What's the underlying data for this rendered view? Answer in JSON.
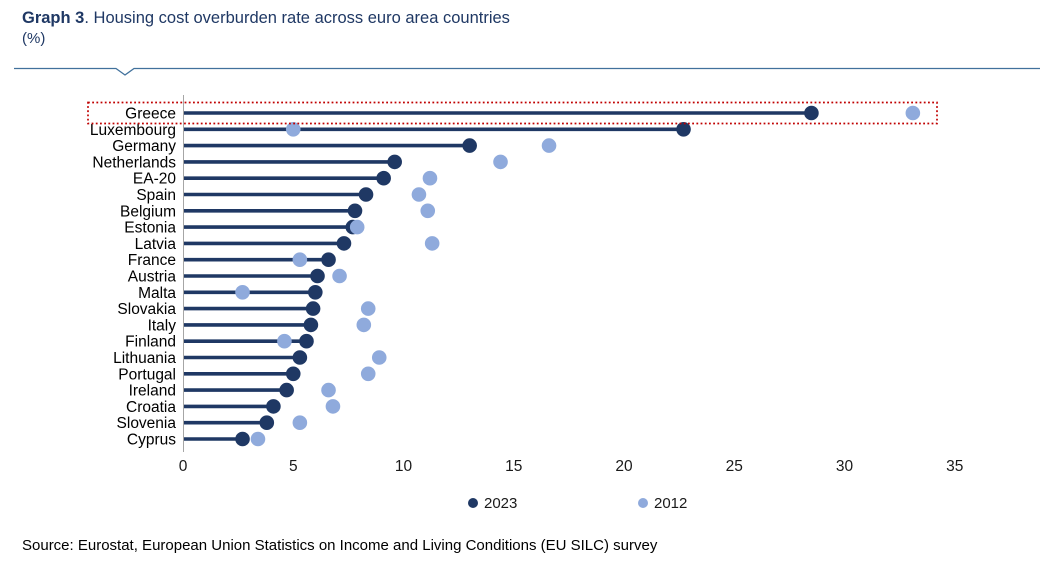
{
  "header": {
    "title_prefix": "Graph 3",
    "title_rest": ". Housing cost overburden rate across euro area countries",
    "subtitle": "(%)"
  },
  "chart_data": {
    "type": "lollipop-dot",
    "orientation": "horizontal",
    "title": "Housing cost overburden rate across euro area countries",
    "unit": "%",
    "xlim": [
      0,
      35
    ],
    "x_ticks": [
      0,
      5,
      10,
      15,
      20,
      25,
      30,
      35
    ],
    "grid": false,
    "legend_position": "bottom",
    "categories": [
      "Greece",
      "Luxembourg",
      "Germany",
      "Netherlands",
      "EA-20",
      "Spain",
      "Belgium",
      "Estonia",
      "Latvia",
      "France",
      "Austria",
      "Malta",
      "Slovakia",
      "Italy",
      "Finland",
      "Lithuania",
      "Portugal",
      "Ireland",
      "Croatia",
      "Slovenia",
      "Cyprus"
    ],
    "series": [
      {
        "name": "2023",
        "color": "#1F3864",
        "values": [
          28.5,
          22.7,
          13.0,
          9.6,
          9.1,
          8.3,
          7.8,
          7.7,
          7.3,
          6.6,
          6.1,
          6.0,
          5.9,
          5.8,
          5.6,
          5.3,
          5.0,
          4.7,
          4.1,
          3.8,
          2.7
        ]
      },
      {
        "name": "2012",
        "color": "#8FAADC",
        "values": [
          33.1,
          5.0,
          16.6,
          14.4,
          11.2,
          10.7,
          11.1,
          7.9,
          11.3,
          5.3,
          7.1,
          2.7,
          8.4,
          8.2,
          4.6,
          8.9,
          8.4,
          6.6,
          6.8,
          5.3,
          3.4
        ]
      }
    ],
    "highlight": {
      "category": "Greece",
      "style": "red-dotted-box",
      "color": "#C00000"
    }
  },
  "colors": {
    "title": "#1F3864",
    "series_2023": "#1F3864",
    "series_2012": "#8FAADC",
    "axis_line": "#A6A6A6",
    "header_rule": "#41719C",
    "highlight_box": "#C00000",
    "tick_label": "#1a1a1a",
    "category_label": "#000000"
  },
  "source": "Source: Eurostat, European Union Statistics on Income and Living Conditions (EU SILC) survey"
}
